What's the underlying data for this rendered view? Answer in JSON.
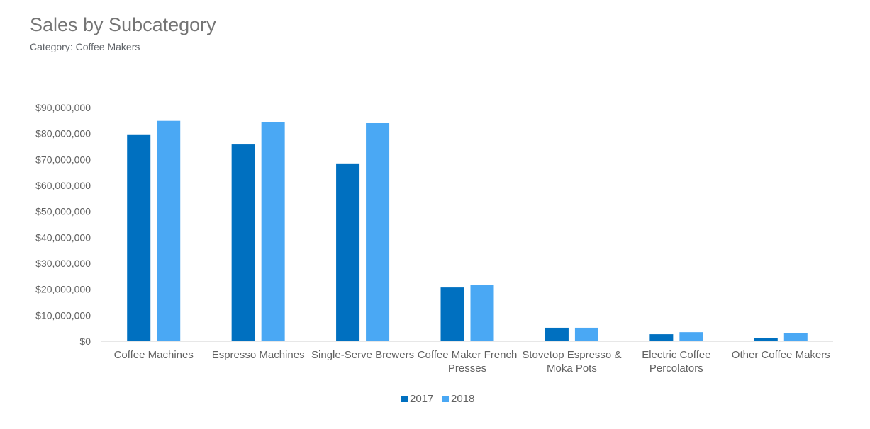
{
  "chart_data": {
    "type": "bar",
    "title": "Sales by Subcategory",
    "subtitle": "Category: Coffee Makers",
    "xlabel": "",
    "ylabel": "",
    "ylim": [
      0,
      90000000
    ],
    "yticks": [
      0,
      10000000,
      20000000,
      30000000,
      40000000,
      50000000,
      60000000,
      70000000,
      80000000,
      90000000
    ],
    "ytick_labels": [
      "$0",
      "$10,000,000",
      "$20,000,000",
      "$30,000,000",
      "$40,000,000",
      "$50,000,000",
      "$60,000,000",
      "$70,000,000",
      "$80,000,000",
      "$90,000,000"
    ],
    "categories": [
      [
        "Coffee Machines"
      ],
      [
        "Espresso Machines"
      ],
      [
        "Single-Serve Brewers"
      ],
      [
        "Coffee Maker French",
        "Presses"
      ],
      [
        "Stovetop Espresso &",
        "Moka Pots"
      ],
      [
        "Electric Coffee",
        "Percolators"
      ],
      [
        "Other Coffee Makers"
      ]
    ],
    "series": [
      {
        "name": "2017",
        "color": "#0070c0",
        "values": [
          79700000,
          75800000,
          68500000,
          20700000,
          5200000,
          2700000,
          1300000
        ]
      },
      {
        "name": "2018",
        "color": "#4aa8f4",
        "values": [
          84900000,
          84300000,
          84000000,
          21600000,
          5200000,
          3500000,
          3000000
        ]
      }
    ],
    "grid": false,
    "legend_position": "bottom"
  }
}
